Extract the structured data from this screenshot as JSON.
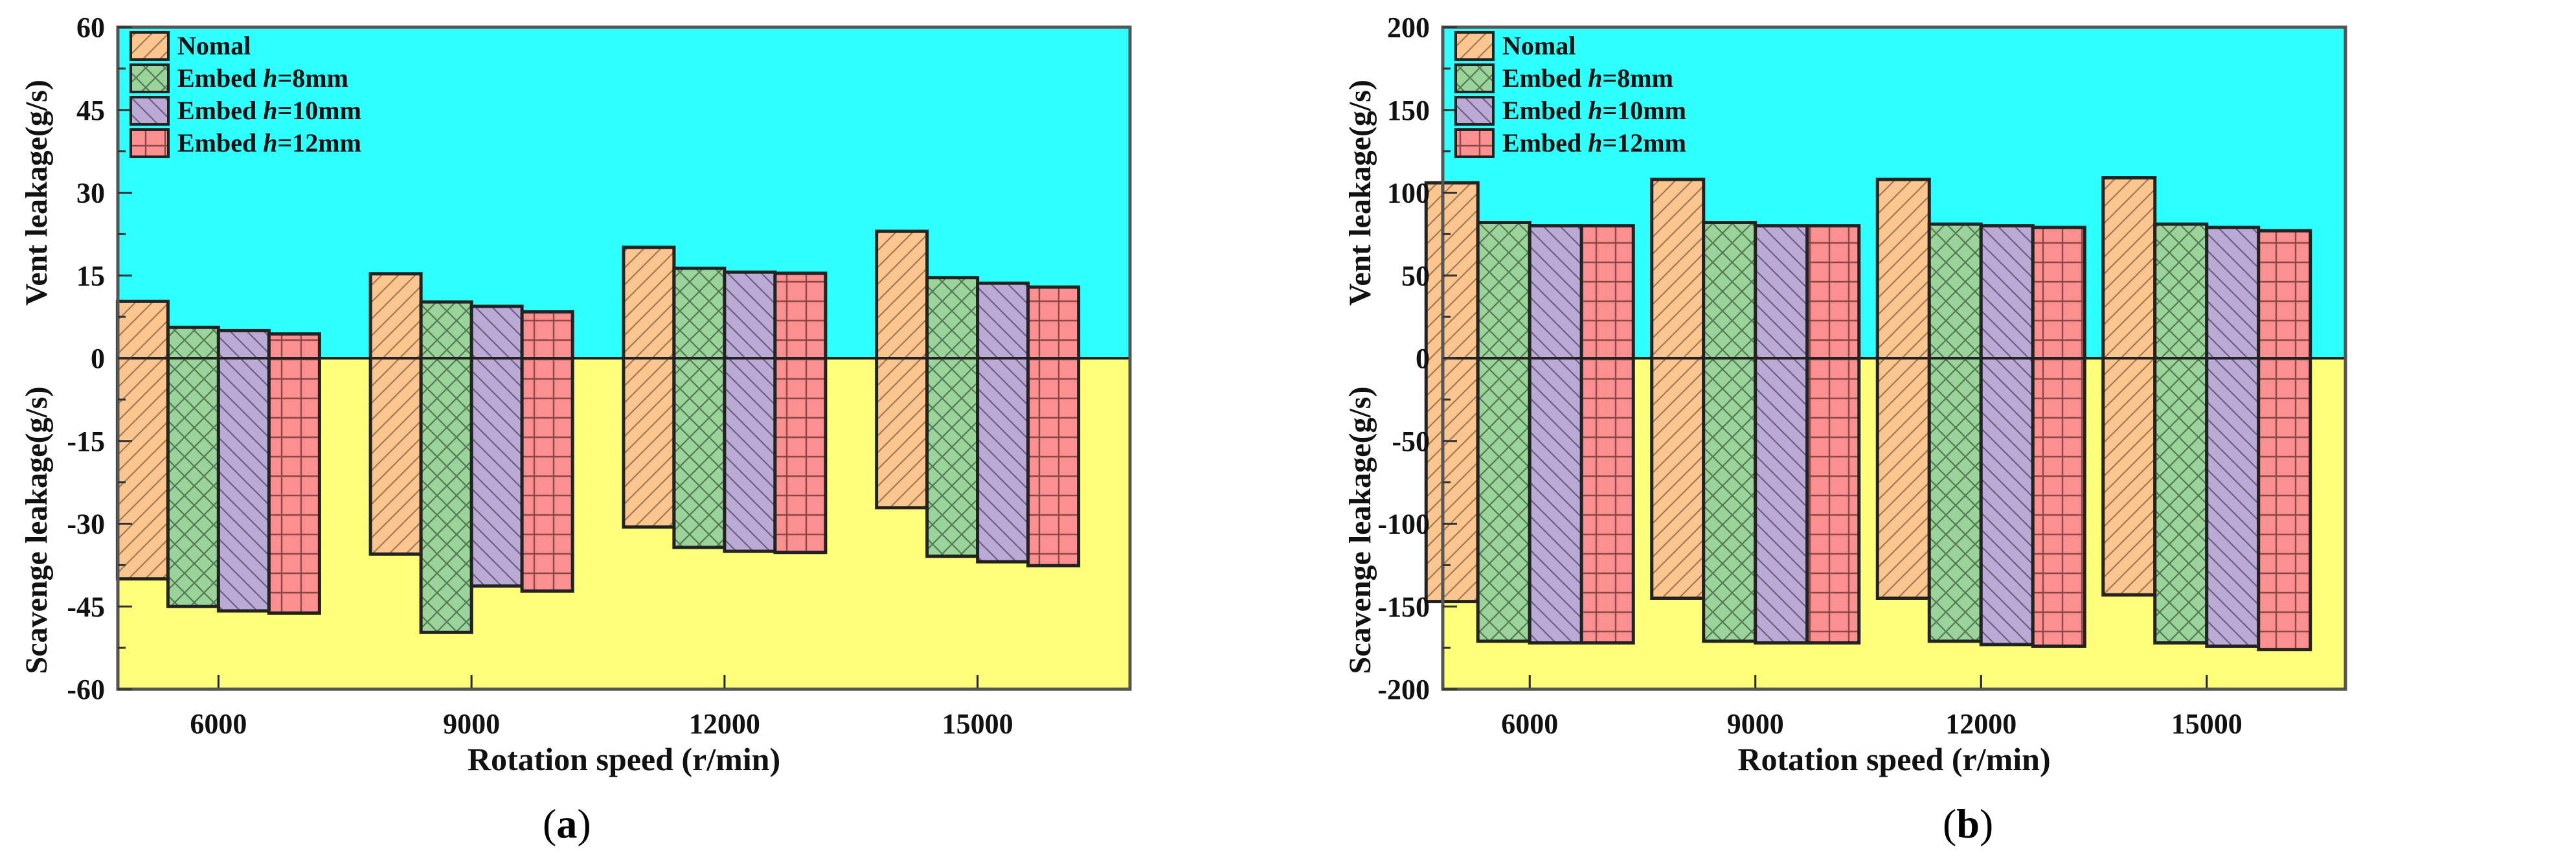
{
  "legend": [
    {
      "label": "Nomal",
      "color": "#fbc58f",
      "pattern": "diag-forward"
    },
    {
      "label_prefix": "Embed ",
      "label_italic": "h",
      "label_suffix": "=8mm",
      "label": "Embed h=8mm",
      "color": "#9ad49a",
      "pattern": "crosshatch"
    },
    {
      "label_prefix": "Embed ",
      "label_italic": "h",
      "label_suffix": "=10mm",
      "label": "Embed h=10mm",
      "color": "#bcaad6",
      "pattern": "diag-back"
    },
    {
      "label_prefix": "Embed ",
      "label_italic": "h",
      "label_suffix": "=12mm",
      "label": "Embed h=12mm",
      "color": "#fc8f8f",
      "pattern": "grid"
    }
  ],
  "colors": {
    "vent_region": "#2effff",
    "scavenge_region": "#ffff7a",
    "axis": "#333333"
  },
  "chart_data": [
    {
      "type": "bar",
      "panel_label": "(a)",
      "caption_letter": "a",
      "title": "",
      "xlabel": "Rotation speed (r/min)",
      "ylabel_top": "Vent leakage(g/s)",
      "ylabel_bottom": "Scavenge leakage(g/s)",
      "ylim": [
        -60,
        60
      ],
      "yticks": [
        60,
        45,
        30,
        15,
        0,
        -15,
        -30,
        -45,
        -60
      ],
      "categories": [
        "6000",
        "9000",
        "12000",
        "15000"
      ],
      "legend_position": "upper-left",
      "grid": false,
      "series": [
        {
          "name": "Nomal",
          "vent": [
            10.3,
            15.3,
            20.1,
            23.0
          ],
          "scavenge": [
            -40.0,
            -35.5,
            -30.6,
            -27.1
          ]
        },
        {
          "name": "Embed h=8mm",
          "vent": [
            5.6,
            10.2,
            16.3,
            14.6
          ],
          "scavenge": [
            -45.0,
            -49.7,
            -34.3,
            -35.9
          ]
        },
        {
          "name": "Embed h=10mm",
          "vent": [
            5.0,
            9.4,
            15.6,
            13.6
          ],
          "scavenge": [
            -45.8,
            -41.3,
            -35.0,
            -36.9
          ]
        },
        {
          "name": "Embed h=12mm",
          "vent": [
            4.4,
            8.4,
            15.4,
            12.9
          ],
          "scavenge": [
            -46.2,
            -42.2,
            -35.2,
            -37.6
          ]
        }
      ]
    },
    {
      "type": "bar",
      "panel_label": "(b)",
      "caption_letter": "b",
      "title": "",
      "xlabel": "Rotation speed (r/min)",
      "ylabel_top": "Vent leakage(g/s)",
      "ylabel_bottom": "Scavenge leakage(g/s)",
      "ylim": [
        -200,
        200
      ],
      "yticks": [
        200,
        150,
        100,
        50,
        0,
        -50,
        -100,
        -150,
        -200
      ],
      "categories": [
        "6000",
        "9000",
        "12000",
        "15000"
      ],
      "legend_position": "upper-left",
      "grid": false,
      "series": [
        {
          "name": "Nomal",
          "vent": [
            106,
            108,
            108,
            109
          ],
          "scavenge": [
            -147,
            -145,
            -145,
            -143
          ]
        },
        {
          "name": "Embed h=8mm",
          "vent": [
            82,
            82,
            81,
            81
          ],
          "scavenge": [
            -171,
            -171,
            -171,
            -172
          ]
        },
        {
          "name": "Embed h=10mm",
          "vent": [
            80,
            80,
            80,
            79
          ],
          "scavenge": [
            -172,
            -172,
            -173,
            -174
          ]
        },
        {
          "name": "Embed h=12mm",
          "vent": [
            80,
            80,
            79,
            77
          ],
          "scavenge": [
            -172,
            -172,
            -174,
            -176
          ]
        }
      ]
    }
  ]
}
